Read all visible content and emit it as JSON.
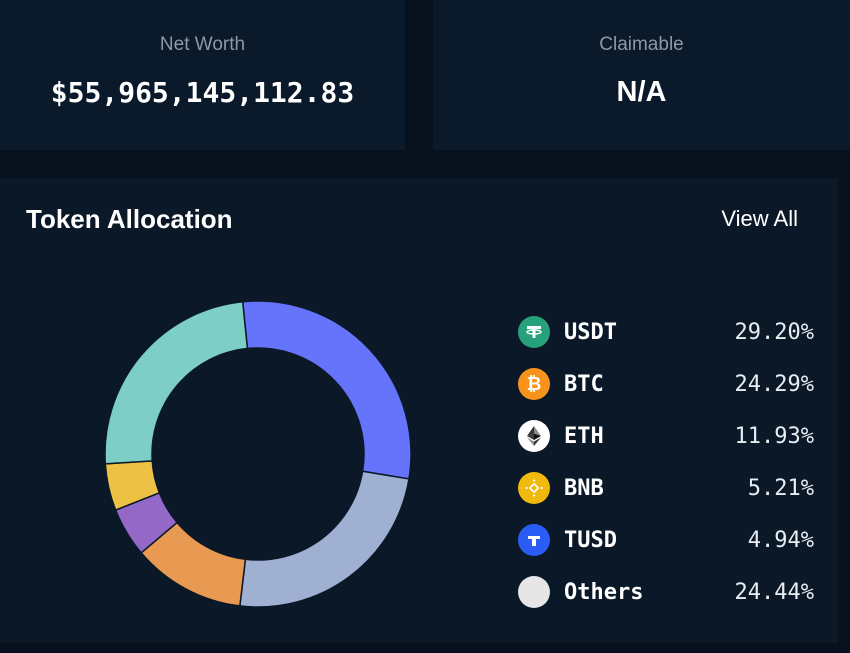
{
  "net_worth": {
    "label": "Net Worth",
    "value": "$55,965,145,112.83"
  },
  "claimable": {
    "label": "Claimable",
    "value": "N/A"
  },
  "allocation": {
    "title": "Token Allocation",
    "view_all_label": "View All"
  },
  "chart_data": {
    "type": "pie",
    "subtype": "donut",
    "title": "Token Allocation",
    "slices": [
      {
        "label": "USDT",
        "value": 29.2,
        "display": "29.20%",
        "color": "#6574fb",
        "legend_color": "#26a17b",
        "icon": "tether-icon"
      },
      {
        "label": "BTC",
        "value": 24.29,
        "display": "24.29%",
        "color": "#9fb0d3",
        "legend_color": "#f7931a",
        "icon": "bitcoin-icon"
      },
      {
        "label": "ETH",
        "value": 11.93,
        "display": "11.93%",
        "color": "#e99a52",
        "legend_color": "#ffffff",
        "icon": "ethereum-icon"
      },
      {
        "label": "BNB",
        "value": 5.21,
        "display": "5.21%",
        "color": "#9368c7",
        "legend_color": "#f0b90b",
        "icon": "bnb-icon"
      },
      {
        "label": "TUSD",
        "value": 4.94,
        "display": "4.94%",
        "color": "#edc144",
        "legend_color": "#2b5cf5",
        "icon": "tusd-icon"
      },
      {
        "label": "Others",
        "value": 24.44,
        "display": "24.44%",
        "color": "#7dcfc6",
        "legend_color": "#e6e6e6",
        "icon": "others-icon"
      }
    ]
  }
}
